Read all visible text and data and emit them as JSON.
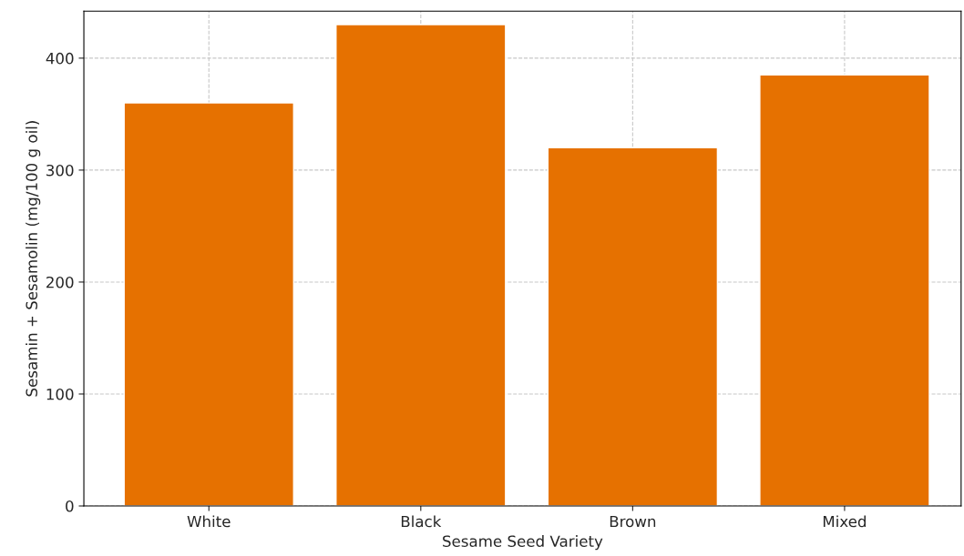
{
  "chart_data": {
    "type": "bar",
    "xlabel": "Sesame Seed Variety",
    "ylabel": "Sesamin + Sesamolin (mg/100 g oil)",
    "categories": [
      "White",
      "Black",
      "Brown",
      "Mixed"
    ],
    "values": [
      360,
      430,
      320,
      385
    ],
    "color": "#e67100",
    "ylim": [
      0,
      442
    ],
    "yticks": [
      0,
      100,
      200,
      300,
      400
    ],
    "grid": true
  }
}
